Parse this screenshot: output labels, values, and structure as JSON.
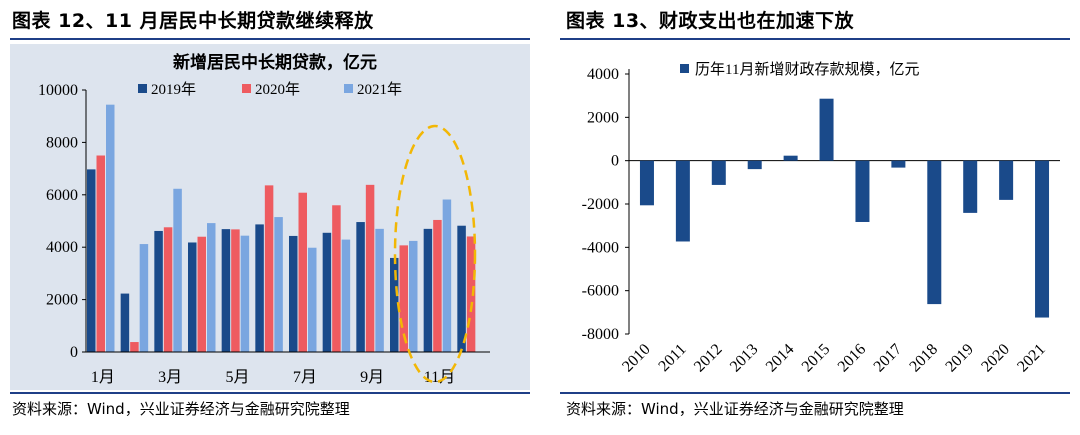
{
  "left_panel": {
    "title": "图表 12、11 月居民中长期贷款继续释放",
    "source": "资料来源：Wind，兴业证券经济与金融研究院整理"
  },
  "right_panel": {
    "title": "图表 13、财政支出也在加速下放",
    "source": "资料来源：Wind，兴业证券经济与金融研究院整理"
  },
  "colors": {
    "background_left": "#dde4ee",
    "background_right": "#ffffff",
    "series_2019": "#1a4a8a",
    "series_2020": "#ee5b60",
    "series_2021": "#7aa6e0",
    "right_bar": "#1a4a8a",
    "title_rule": "#1f3f87",
    "highlight_ellipse": "#f2b705"
  },
  "chart_data": [
    {
      "type": "bar",
      "title": "新增居民中长期贷款，亿元",
      "categories": [
        "1月",
        "2月",
        "3月",
        "4月",
        "5月",
        "6月",
        "7月",
        "8月",
        "9月",
        "10月",
        "11月",
        "12月"
      ],
      "tick_labels": [
        "1月",
        "",
        "3月",
        "",
        "5月",
        "",
        "7月",
        "",
        "9月",
        "",
        "11月",
        ""
      ],
      "series": [
        {
          "name": "2019年",
          "values": [
            6970,
            2230,
            4620,
            4180,
            4690,
            4870,
            4430,
            4550,
            4960,
            3590,
            4700,
            4820
          ]
        },
        {
          "name": "2020年",
          "values": [
            7500,
            380,
            4760,
            4400,
            4680,
            6360,
            6080,
            5600,
            6380,
            4070,
            5040,
            4410
          ]
        },
        {
          "name": "2021年",
          "values": [
            9440,
            4120,
            6230,
            4920,
            4440,
            5150,
            3980,
            4290,
            4700,
            4240,
            5820,
            null
          ]
        }
      ],
      "ylim": [
        0,
        10000
      ],
      "yticks": [
        "0",
        "2000",
        "4000",
        "6000",
        "8000",
        "10000"
      ],
      "legend_position": "top",
      "annotation": "dashed ellipse highlighting November"
    },
    {
      "type": "bar",
      "title": "",
      "categories": [
        "2010",
        "2011",
        "2012",
        "2013",
        "2014",
        "2015",
        "2016",
        "2017",
        "2018",
        "2019",
        "2020",
        "2021"
      ],
      "series": [
        {
          "name": "历年11月新增财政存款规模，亿元",
          "values": [
            -2060,
            -3730,
            -1120,
            -390,
            230,
            2860,
            -2830,
            -320,
            -6620,
            -2410,
            -1810,
            -7240
          ]
        }
      ],
      "ylim": [
        -8000,
        4000
      ],
      "yticks": [
        "4000",
        "2000",
        "0",
        "-2000",
        "-4000",
        "-6000",
        "-8000"
      ],
      "legend_position": "top"
    }
  ]
}
